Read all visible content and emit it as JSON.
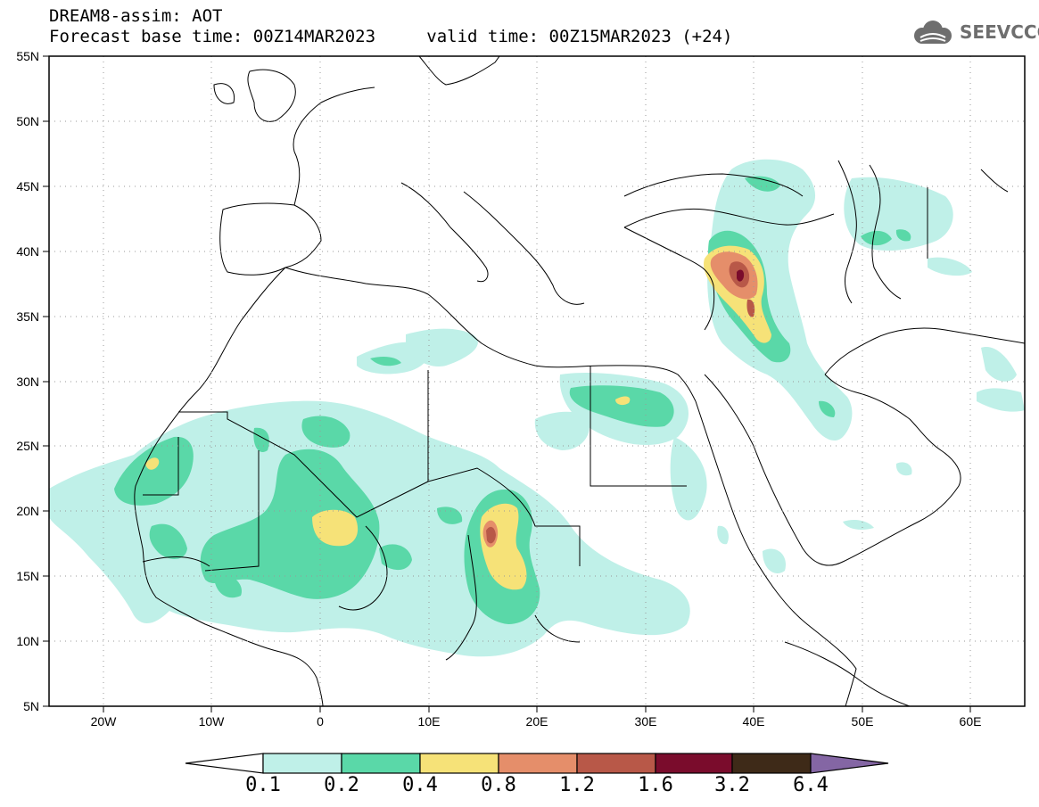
{
  "header": {
    "title": "DREAM8-assim: AOT",
    "base_time_label": "Forecast base time: 00Z14MAR2023",
    "valid_time_label": "valid time: 00Z15MAR2023 (+24)"
  },
  "logo": {
    "text": "SEEVCCC",
    "icon": "cloud-icon"
  },
  "map": {
    "lon_range": [
      -25,
      65
    ],
    "lat_range": [
      5,
      55
    ],
    "lat_ticks": [
      "55N",
      "50N",
      "45N",
      "40N",
      "35N",
      "30N",
      "25N",
      "20N",
      "15N",
      "10N",
      "5N"
    ],
    "lon_ticks": [
      "20W",
      "10W",
      "0",
      "10E",
      "20E",
      "30E",
      "40E",
      "50E",
      "60E"
    ],
    "grid": "dotted"
  },
  "colorbar": {
    "labels": [
      "0.1",
      "0.2",
      "0.4",
      "0.8",
      "1.2",
      "1.6",
      "3.2",
      "6.4"
    ],
    "colors": [
      "#ffffff",
      "#bff0e8",
      "#5ad8a8",
      "#f6e278",
      "#e58e6a",
      "#b85848",
      "#7a0c2c",
      "#3e2a18",
      "#8466a4"
    ]
  }
}
